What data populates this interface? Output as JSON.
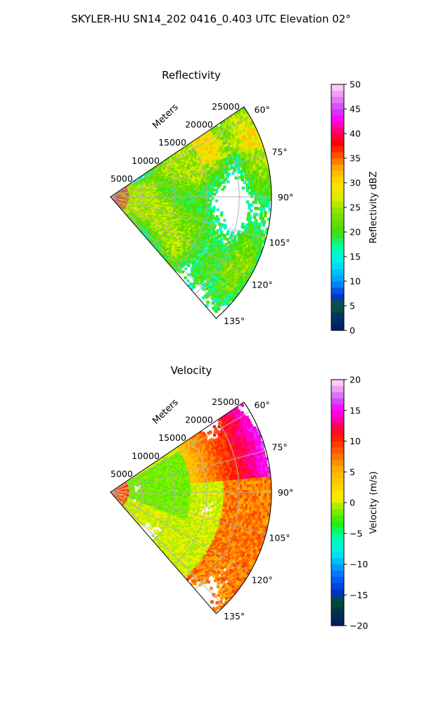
{
  "figure": {
    "suptitle": "SKYLER-HU  SN14_202  0416_0.403 UTC Elevation 02°"
  },
  "chart_data": [
    {
      "type": "heatmap",
      "projection": "polar-sector",
      "title": "Reflectivity",
      "r_label": "Meters",
      "r_ticks": [
        5000,
        10000,
        15000,
        20000,
        25000
      ],
      "r_tick_labels": [
        "5000",
        "10000",
        "15000",
        "20000",
        "25000"
      ],
      "r_max": 25000,
      "theta_range_deg": [
        56,
        139
      ],
      "theta_ticks_deg": [
        60,
        75,
        90,
        105,
        120,
        135
      ],
      "theta_tick_labels": [
        "60°",
        "75°",
        "90°",
        "105°",
        "120°",
        "135°"
      ],
      "grid": true,
      "colorbar": {
        "label": "Reflectivity dBZ",
        "range": [
          0,
          50
        ],
        "ticks": [
          0,
          5,
          10,
          15,
          20,
          25,
          30,
          35,
          40,
          45,
          50
        ],
        "tick_labels": [
          "0",
          "5",
          "10",
          "15",
          "20",
          "25",
          "30",
          "35",
          "40",
          "45",
          "50"
        ]
      },
      "colors": {
        "low": "#001a66",
        "mid": "#33cc00",
        "high": "#ffdd00",
        "max": "#ff33ff"
      }
    },
    {
      "type": "heatmap",
      "projection": "polar-sector",
      "title": "Velocity",
      "r_label": "Meters",
      "r_ticks": [
        5000,
        10000,
        15000,
        20000,
        25000
      ],
      "r_tick_labels": [
        "5000",
        "10000",
        "15000",
        "20000",
        "25000"
      ],
      "r_max": 25000,
      "theta_range_deg": [
        56,
        139
      ],
      "theta_ticks_deg": [
        60,
        75,
        90,
        105,
        120,
        135
      ],
      "theta_tick_labels": [
        "60°",
        "75°",
        "90°",
        "105°",
        "120°",
        "135°"
      ],
      "grid": true,
      "colorbar": {
        "label": "Velocity (m/s)",
        "range": [
          -20,
          20
        ],
        "ticks": [
          -20,
          -15,
          -10,
          -5,
          0,
          5,
          10,
          15,
          20
        ],
        "tick_labels": [
          "−20",
          "−15",
          "−10",
          "−5",
          "0",
          "5",
          "10",
          "15",
          "20"
        ]
      },
      "colors": {
        "low": "#001a66",
        "zero": "#ffe000",
        "high": "#ff00ff"
      }
    }
  ]
}
